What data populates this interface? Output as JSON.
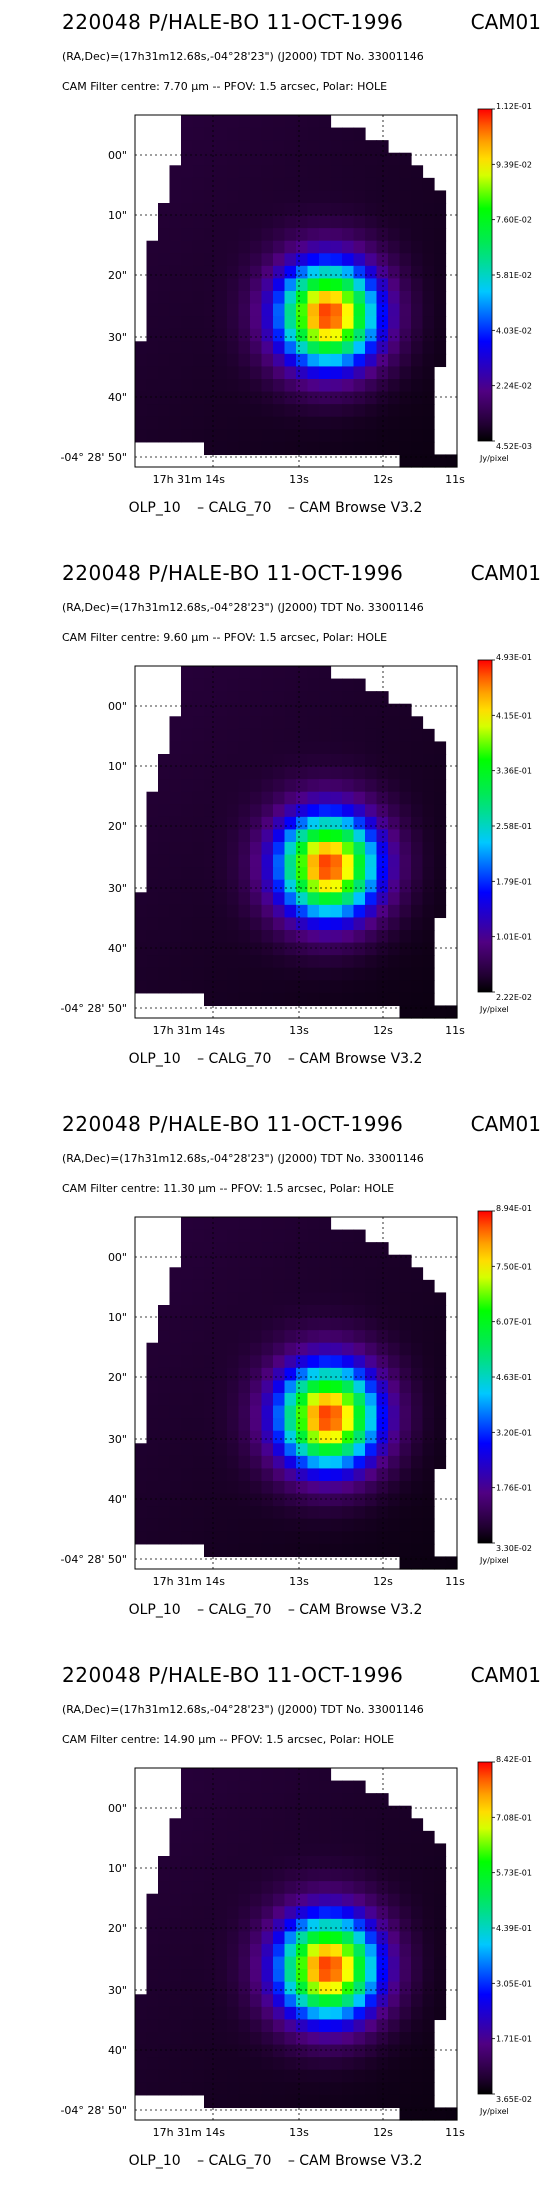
{
  "panels": [
    {
      "title": "220048 P/HALE-BO 11-OCT-1996",
      "camera": "CAM01",
      "coords": "(RA,Dec)=(17h31m12.68s,-04°28'23\") (J2000) TDT No. 33001146",
      "filter_line": "CAM  Filter  centre:  7.70 µm --   PFOV:  1.5 arcsec, Polar: HOLE",
      "footer": [
        "OLP_10",
        "– CALG_70",
        "– CAM Browse V3.2"
      ]
    },
    {
      "title": "220048 P/HALE-BO 11-OCT-1996",
      "camera": "CAM01",
      "coords": "(RA,Dec)=(17h31m12.68s,-04°28'23\") (J2000) TDT No. 33001146",
      "filter_line": "CAM  Filter  centre:  9.60 µm --   PFOV:  1.5 arcsec, Polar: HOLE",
      "footer": [
        "OLP_10",
        "– CALG_70",
        "– CAM Browse V3.2"
      ]
    },
    {
      "title": "220048 P/HALE-BO 11-OCT-1996",
      "camera": "CAM01",
      "coords": "(RA,Dec)=(17h31m12.68s,-04°28'23\") (J2000) TDT No. 33001146",
      "filter_line": "CAM  Filter  centre: 11.30 µm --   PFOV:  1.5 arcsec, Polar: HOLE",
      "footer": [
        "OLP_10",
        "– CALG_70",
        "– CAM Browse V3.2"
      ]
    },
    {
      "title": "220048 P/HALE-BO 11-OCT-1996",
      "camera": "CAM01",
      "coords": "(RA,Dec)=(17h31m12.68s,-04°28'23\") (J2000) TDT No. 33001146",
      "filter_line": "CAM  Filter  centre: 14.90 µm --   PFOV:  1.5 arcsec, Polar: HOLE",
      "footer": [
        "OLP_10",
        "– CALG_70",
        "– CAM Browse V3.2"
      ]
    }
  ],
  "chart_data": [
    {
      "type": "heatmap",
      "x_ticks": [
        "17h 31m 14s",
        "13s",
        "12s",
        "11s"
      ],
      "y_ticks": [
        "00\"",
        "10\"",
        "20\"",
        "30\"",
        "40\"",
        "-04° 28' 50\""
      ],
      "colorbar_ticks": [
        "4.52E-03",
        "2.24E-02",
        "4.03E-02",
        "5.81E-02",
        "7.60E-02",
        "9.39E-02",
        "1.12E-01"
      ],
      "colorbar_unit": "Jy/pixel",
      "peak_fraction": 1.0,
      "grid": true
    },
    {
      "type": "heatmap",
      "x_ticks": [
        "17h 31m 14s",
        "13s",
        "12s",
        "11s"
      ],
      "y_ticks": [
        "00\"",
        "10\"",
        "20\"",
        "30\"",
        "40\"",
        "-04° 28' 50\""
      ],
      "colorbar_ticks": [
        "2.22E-02",
        "1.01E-01",
        "1.79E-01",
        "2.58E-01",
        "3.36E-01",
        "4.15E-01",
        "4.93E-01"
      ],
      "colorbar_unit": "Jy/pixel",
      "peak_fraction": 1.0,
      "grid": true
    },
    {
      "type": "heatmap",
      "x_ticks": [
        "17h 31m 14s",
        "13s",
        "12s",
        "11s"
      ],
      "y_ticks": [
        "00\"",
        "10\"",
        "20\"",
        "30\"",
        "40\"",
        "-04° 28' 50\""
      ],
      "colorbar_ticks": [
        "3.30E-02",
        "1.76E-01",
        "3.20E-01",
        "4.63E-01",
        "6.07E-01",
        "7.50E-01",
        "8.94E-01"
      ],
      "colorbar_unit": "Jy/pixel",
      "peak_fraction": 1.0,
      "grid": true
    },
    {
      "type": "heatmap",
      "x_ticks": [
        "17h 31m 14s",
        "13s",
        "12s",
        "11s"
      ],
      "y_ticks": [
        "00\"",
        "10\"",
        "20\"",
        "30\"",
        "40\"",
        "-04° 28' 50\""
      ],
      "colorbar_ticks": [
        "3.65E-02",
        "1.71E-01",
        "3.05E-01",
        "4.39E-01",
        "5.73E-01",
        "7.08E-01",
        "8.42E-01"
      ],
      "colorbar_unit": "Jy/pixel",
      "peak_fraction": 1.0,
      "grid": true
    }
  ]
}
